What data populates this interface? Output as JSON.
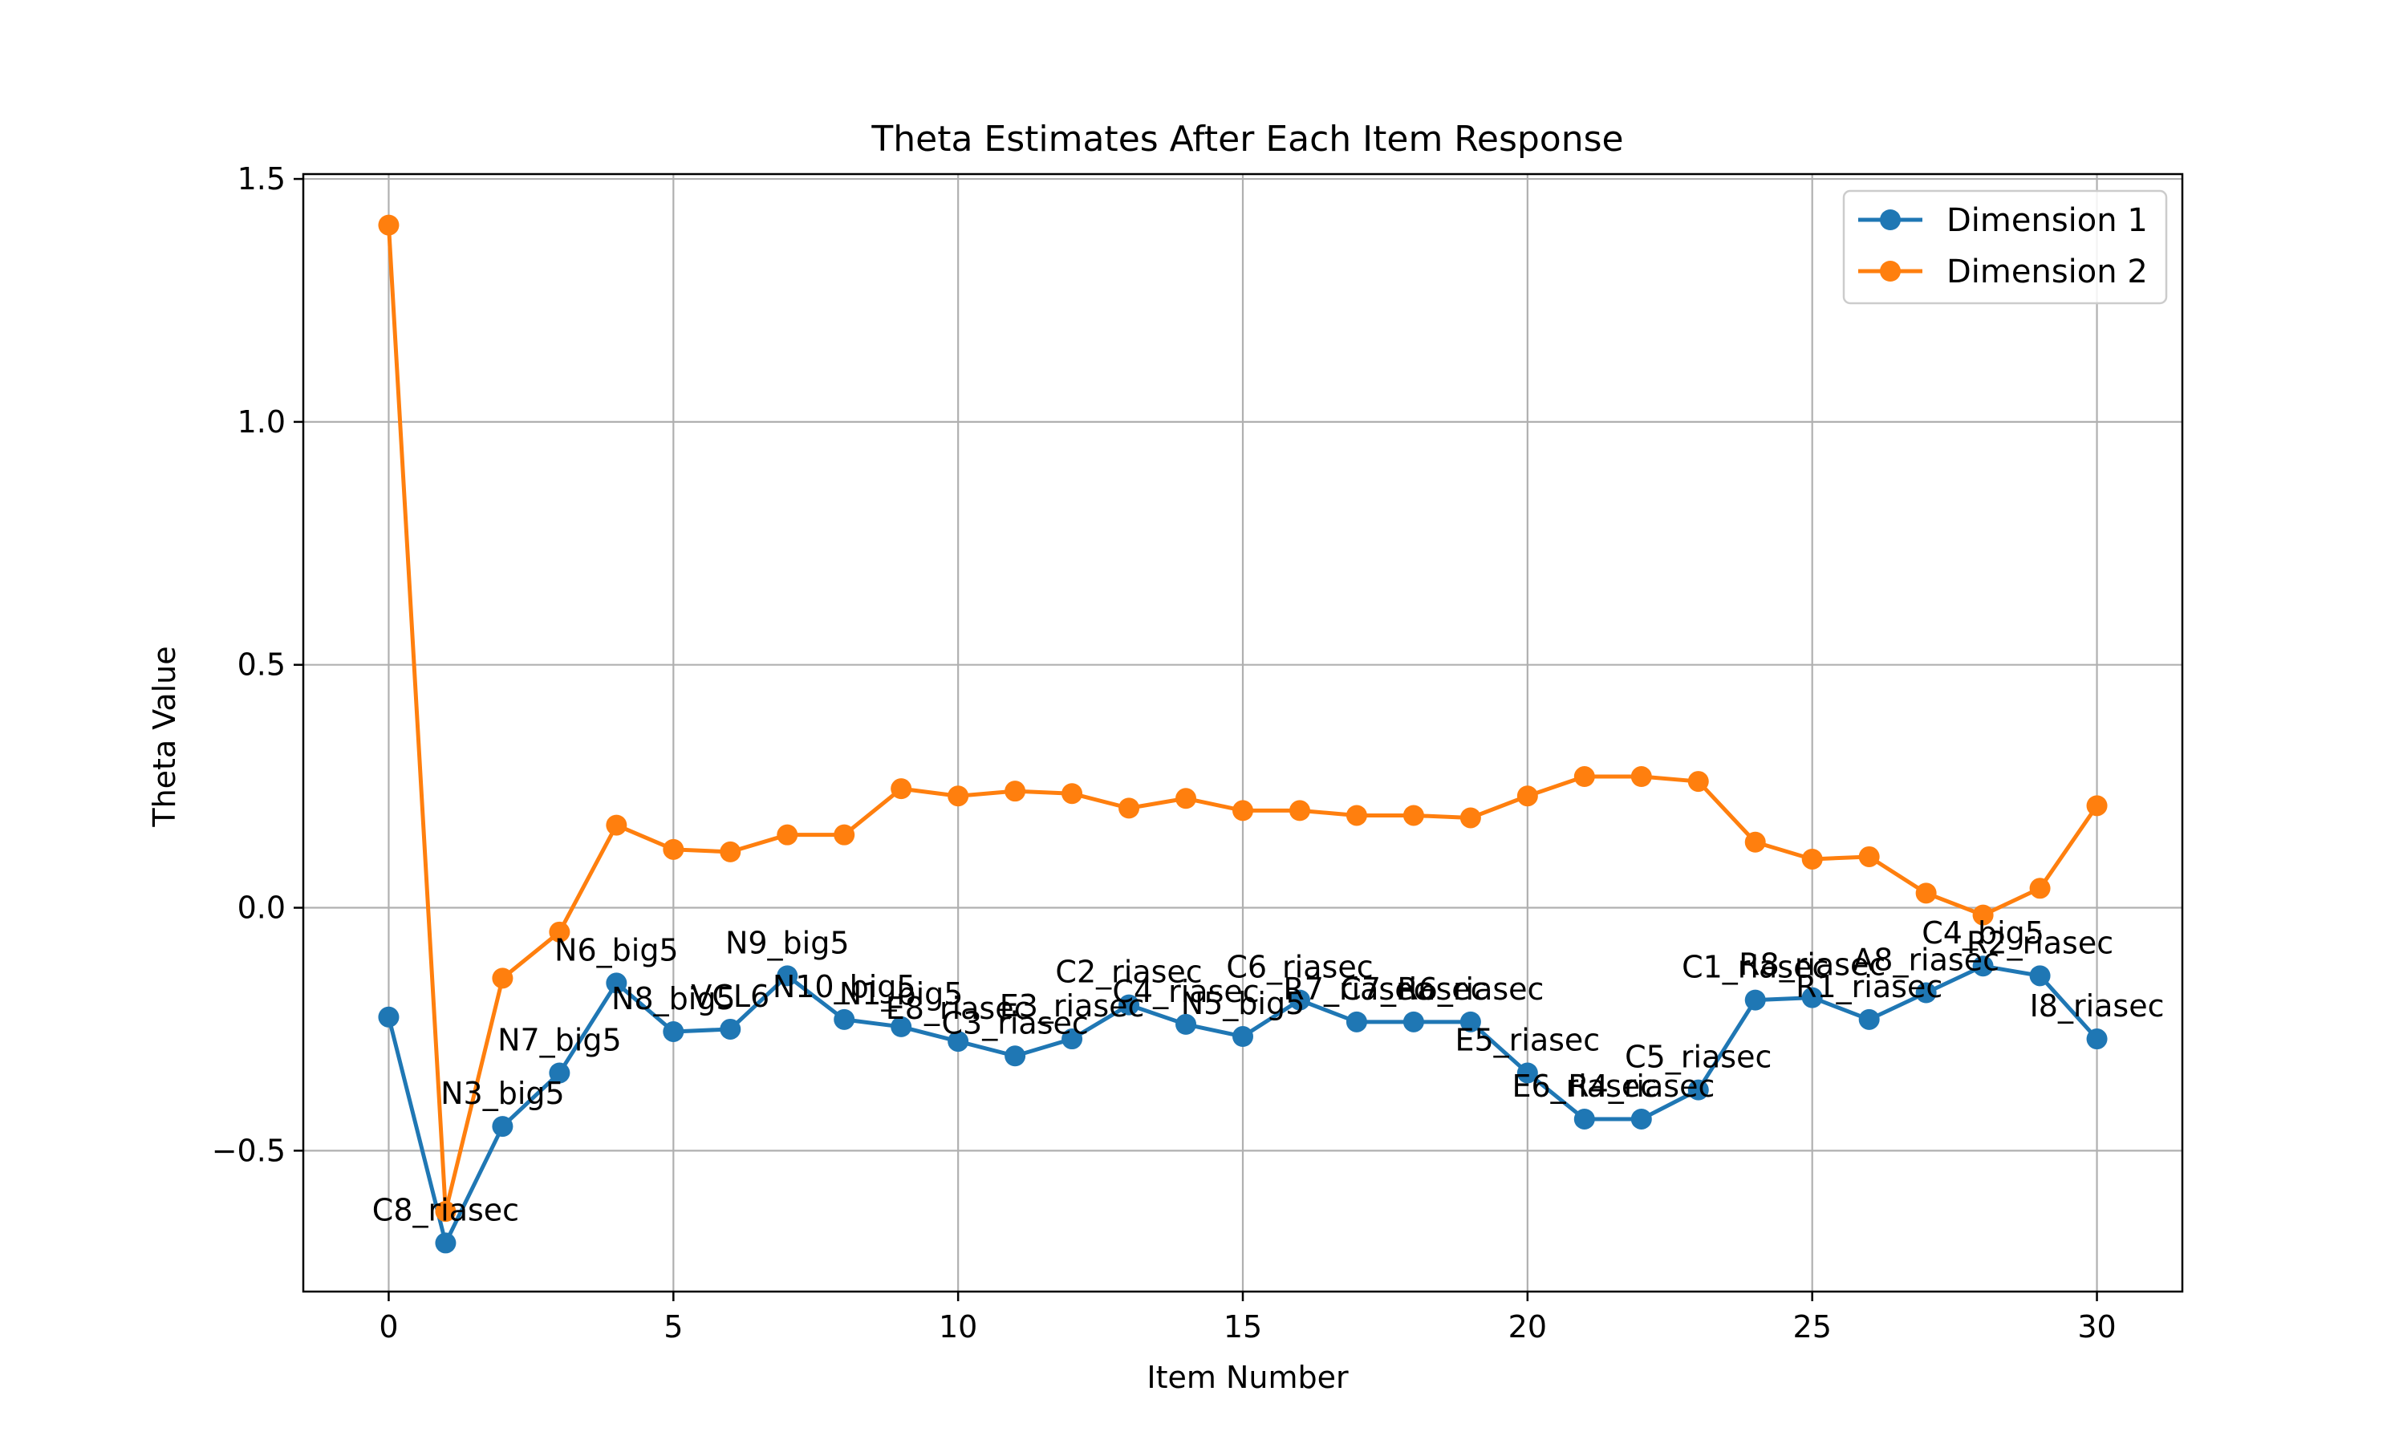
{
  "chart_data": {
    "type": "line",
    "title": "Theta Estimates After Each Item Response",
    "xlabel": "Item Number",
    "ylabel": "Theta Value",
    "xlim": [
      -1.5,
      31.5
    ],
    "ylim": [
      -0.79,
      1.51
    ],
    "xticks": [
      0,
      5,
      10,
      15,
      20,
      25,
      30
    ],
    "yticks": [
      -0.5,
      0.0,
      0.5,
      1.0,
      1.5
    ],
    "xtick_labels": [
      "0",
      "5",
      "10",
      "15",
      "20",
      "25",
      "30"
    ],
    "ytick_labels": [
      "−0.5",
      "0.0",
      "0.5",
      "1.0",
      "1.5"
    ],
    "grid": true,
    "legend_position": "top-right",
    "x": [
      0,
      1,
      2,
      3,
      4,
      5,
      6,
      7,
      8,
      9,
      10,
      11,
      12,
      13,
      14,
      15,
      16,
      17,
      18,
      19,
      20,
      21,
      22,
      23,
      24,
      25,
      26,
      27,
      28,
      29,
      30
    ],
    "series": [
      {
        "name": "Dimension 1",
        "color": "#1f77b4",
        "values": [
          -0.225,
          -0.69,
          -0.45,
          -0.34,
          -0.155,
          -0.255,
          -0.25,
          -0.14,
          -0.23,
          -0.245,
          -0.275,
          -0.305,
          -0.27,
          -0.2,
          -0.24,
          -0.265,
          -0.19,
          -0.235,
          -0.235,
          -0.235,
          -0.34,
          -0.435,
          -0.435,
          -0.375,
          -0.19,
          -0.185,
          -0.23,
          -0.175,
          -0.12,
          -0.14,
          -0.27
        ]
      },
      {
        "name": "Dimension 2",
        "color": "#ff7f0e",
        "values": [
          1.405,
          -0.625,
          -0.145,
          -0.05,
          0.17,
          0.12,
          0.115,
          0.15,
          0.15,
          0.245,
          0.23,
          0.24,
          0.235,
          0.205,
          0.225,
          0.2,
          0.2,
          0.19,
          0.19,
          0.185,
          0.23,
          0.27,
          0.27,
          0.26,
          0.135,
          0.1,
          0.105,
          0.03,
          -0.015,
          0.04,
          0.21
        ]
      }
    ],
    "point_labels": [
      "",
      "C8_riasec",
      "N3_big5",
      "N7_big5",
      "N6_big5",
      "N8_big5",
      "VCL6",
      "N9_big5",
      "N10_big5",
      "N1_big5",
      "E8_riasec",
      "C3_riasec",
      "E3_riasec",
      "C2_riasec",
      "C4_riasec",
      "N5_big5",
      "C6_riasec",
      "R7_riasec",
      "C7_riasec",
      "R6_riasec",
      "E5_riasec",
      "E6_riasec",
      "R4_riasec",
      "C5_riasec",
      "C1_riasec",
      "R8_riasec",
      "R1_riasec",
      "A8_riasec",
      "C4_big5",
      "R2_riasec",
      "I8_riasec"
    ]
  }
}
